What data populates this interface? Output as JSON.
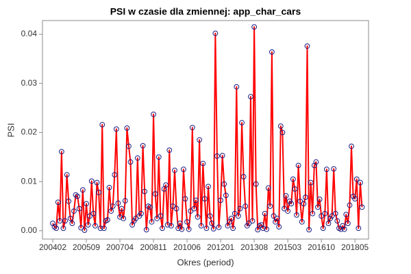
{
  "chart_data": {
    "type": "line",
    "title": "PSI w czasie dla zmiennej: app_char_cars",
    "x_label": "Okres (period)",
    "y_label": "PSI",
    "color": "#ff0000",
    "marker_color": "#1a1a80",
    "ylim": [
      -0.0017,
      0.0428
    ],
    "yticks": [
      {
        "value": 0,
        "label": "0.00"
      },
      0.01,
      0.02,
      0.03,
      0.04
    ],
    "categories": [
      "200402",
      null,
      null,
      null,
      null,
      null,
      null,
      null,
      null,
      null,
      null,
      null,
      null,
      null,
      null,
      null,
      null,
      null,
      null,
      "200509",
      null,
      null,
      null,
      null,
      null,
      null,
      null,
      null,
      null,
      null,
      null,
      null,
      null,
      null,
      null,
      null,
      null,
      null,
      "200704",
      null,
      null,
      null,
      null,
      null,
      null,
      null,
      null,
      null,
      null,
      null,
      null,
      null,
      null,
      null,
      null,
      null,
      null,
      "200811",
      null,
      null,
      null,
      null,
      null,
      null,
      null,
      null,
      null,
      null,
      null,
      null,
      null,
      null,
      null,
      null,
      null,
      null,
      "201006",
      null,
      null,
      null,
      null,
      null,
      null,
      null,
      null,
      null,
      null,
      null,
      null,
      null,
      null,
      null,
      null,
      null,
      null,
      "201201",
      null,
      null,
      null,
      null,
      null,
      null,
      null,
      null,
      null,
      null,
      null,
      null,
      null,
      null,
      null,
      null,
      null,
      null,
      "201308",
      null,
      null,
      null,
      null,
      null,
      null,
      null,
      null,
      null,
      null,
      null,
      null,
      null,
      null,
      null,
      null,
      null,
      null,
      "201503",
      null,
      null,
      null,
      null,
      null,
      null,
      null,
      null,
      null,
      null,
      null,
      null,
      null,
      null,
      null,
      null,
      null,
      null,
      "201610",
      null,
      null,
      null,
      null,
      null,
      null,
      null,
      null,
      null,
      null,
      null,
      null,
      null,
      null,
      null,
      null,
      null,
      null,
      "201805",
      null,
      null,
      null,
      null
    ],
    "values": [
      0.0015,
      0.0008,
      0.0005,
      0.0058,
      0.002,
      0.0161,
      0.0005,
      0.002,
      0.0114,
      0.006,
      0.0025,
      0.0015,
      0.004,
      0.0073,
      0.007,
      0.0045,
      0.0006,
      0.0083,
      0.0001,
      0.0055,
      0.0012,
      0.003,
      0.0101,
      0.0035,
      0.001,
      0.0098,
      0.0078,
      0.0005,
      0.0216,
      0.0005,
      0.002,
      0.0022,
      0.0088,
      0.004,
      0.005,
      0.0114,
      0.0207,
      0.0056,
      0.0028,
      0.0045,
      0.0025,
      0.0061,
      0.0209,
      0.0172,
      0.014,
      0.0012,
      0.002,
      0.0025,
      0.0148,
      0.003,
      0.0035,
      0.0173,
      0.008,
      0.0002,
      0.005,
      0.0048,
      0.0018,
      0.0237,
      0.0075,
      0.0025,
      0.015,
      0.003,
      0.0005,
      0.0085,
      0.0093,
      0.0012,
      0.0164,
      0.001,
      0.005,
      0.0123,
      0.0045,
      0.0005,
      0.0015,
      0.0003,
      0.0125,
      0.0065,
      0.0018,
      0.0003,
      0.004,
      0.021,
      0.0045,
      0.0062,
      0.0028,
      0.0185,
      0.001,
      0.0137,
      0.0065,
      0.0005,
      0.009,
      0.003,
      0.0015,
      0.0004,
      0.0402,
      0.0152,
      0.0007,
      0.0062,
      0.0153,
      0.0095,
      0.0072,
      0.001,
      0.0018,
      0.0025,
      0.0005,
      0.0035,
      0.0293,
      0.003,
      0.0045,
      0.022,
      0.011,
      0.005,
      0.001,
      0.0015,
      0.0273,
      0.002,
      0.0415,
      0.0095,
      0.0002,
      0.001,
      0.0012,
      0.0005,
      0.0035,
      0.0003,
      0.0087,
      0.005,
      0.0364,
      0.003,
      0.0018,
      0.0025,
      0.0008,
      0.0213,
      0.02,
      0.0045,
      0.0071,
      0.004,
      0.006,
      0.0055,
      0.0105,
      0.0085,
      0.0032,
      0.0133,
      0.006,
      0.0018,
      0.0055,
      0.0068,
      0.0376,
      0.0002,
      0.0098,
      0.0035,
      0.0133,
      0.014,
      0.0048,
      0.0064,
      0.003,
      0.0005,
      0.0035,
      0.0125,
      0.0015,
      0.0025,
      0.003,
      0.0126,
      0.0035,
      0.002,
      0.0005,
      0.0003,
      0.001,
      0.0003,
      0.0033,
      0.0015,
      0.0052,
      0.0172,
      0.007,
      0.0065,
      0.0105,
      0.0005,
      0.0098,
      0.0048
    ]
  }
}
